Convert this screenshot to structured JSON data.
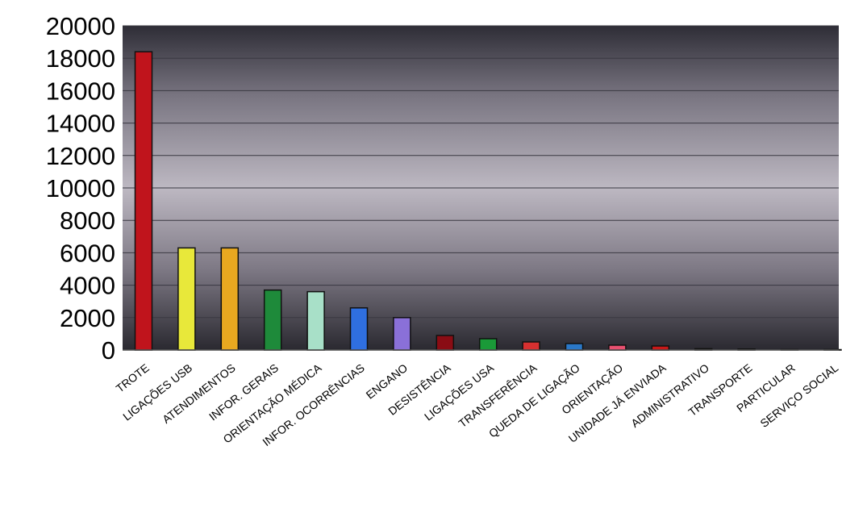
{
  "chart_data": {
    "type": "bar",
    "title": "",
    "xlabel": "",
    "ylabel": "",
    "ylim": [
      0,
      20000
    ],
    "yticks": [
      0,
      2000,
      4000,
      6000,
      8000,
      10000,
      12000,
      14000,
      16000,
      18000,
      20000
    ],
    "grid": true,
    "legend": "none",
    "categories": [
      "TROTE",
      "LIGAÇÕES USB",
      "ATENDIMENTOS",
      "INFOR. GERAIS",
      "ORIENTAÇÃO MÉDICA",
      "INFOR. OCORRÊNCIAS",
      "ENGANO",
      "DESISTÊNCIA",
      "LIGAÇÕES USA",
      "TRANSFERÊNCIA",
      "QUEDA DE LIGAÇÃO",
      "ORIENTAÇÃO",
      "UNIDADE JÁ ENVIADA",
      "ADMINISTRATIVO",
      "TRANSPORTE",
      "PARTICULAR",
      "SERVIÇO SOCIAL"
    ],
    "values": [
      18400,
      6300,
      6300,
      3700,
      3600,
      2600,
      2000,
      900,
      700,
      500,
      400,
      300,
      250,
      80,
      60,
      10,
      5
    ],
    "colors": [
      "#c0141c",
      "#e8e83a",
      "#e8a820",
      "#1e8a3a",
      "#a8e0c8",
      "#2f6fe0",
      "#8a70d8",
      "#8a0c14",
      "#1a9a38",
      "#d83030",
      "#2a78c8",
      "#e85070",
      "#c81818",
      "#303030",
      "#303030",
      "#303030",
      "#303030"
    ]
  }
}
